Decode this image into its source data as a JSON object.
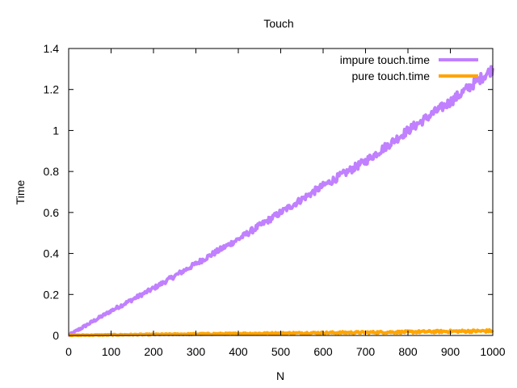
{
  "chart_data": {
    "type": "line",
    "title": "Touch",
    "xlabel": "N",
    "ylabel": "Time",
    "xlim": [
      0,
      1000
    ],
    "ylim": [
      0,
      1.4
    ],
    "x_ticks": [
      "0",
      "100",
      "200",
      "300",
      "400",
      "500",
      "600",
      "700",
      "800",
      "900",
      "1000"
    ],
    "y_ticks": [
      "0",
      "0.2",
      "0.4",
      "0.6",
      "0.8",
      "1",
      "1.2",
      "1.4"
    ],
    "grid": false,
    "legend_position": "top-right",
    "series": [
      {
        "name": "impure touch.time",
        "color": "#c080ff",
        "noise": 0.02,
        "x": [
          0,
          100,
          200,
          300,
          400,
          500,
          600,
          700,
          800,
          900,
          1000
        ],
        "y": [
          0.0,
          0.12,
          0.23,
          0.35,
          0.47,
          0.6,
          0.73,
          0.85,
          1.0,
          1.14,
          1.3
        ]
      },
      {
        "name": "pure touch.time",
        "color": "#ffa500",
        "noise": 0.005,
        "x": [
          0,
          100,
          200,
          300,
          400,
          500,
          600,
          700,
          800,
          900,
          1000
        ],
        "y": [
          0.001,
          0.003,
          0.005,
          0.007,
          0.009,
          0.011,
          0.013,
          0.015,
          0.017,
          0.02,
          0.022
        ]
      }
    ]
  }
}
